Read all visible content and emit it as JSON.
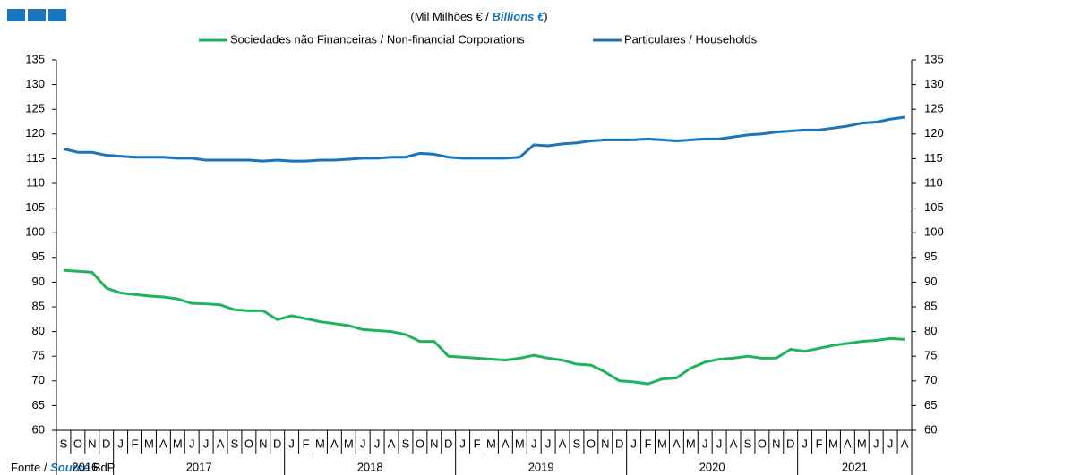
{
  "chart_data": {
    "type": "line",
    "subtitle": [
      "(Mil Milhões € / ",
      "Billions  €",
      ")"
    ],
    "categories": [
      "S",
      "O",
      "N",
      "D",
      "J",
      "F",
      "M",
      "A",
      "M",
      "J",
      "J",
      "A",
      "S",
      "O",
      "N",
      "D",
      "J",
      "F",
      "M",
      "A",
      "M",
      "J",
      "J",
      "A",
      "S",
      "O",
      "N",
      "D",
      "J",
      "F",
      "M",
      "A",
      "M",
      "J",
      "J",
      "A",
      "S",
      "O",
      "N",
      "D",
      "J",
      "F",
      "M",
      "A",
      "M",
      "J",
      "J",
      "A",
      "S",
      "O",
      "N",
      "D",
      "J",
      "F",
      "M",
      "A",
      "M",
      "J",
      "J",
      "A"
    ],
    "years": [
      "2016",
      "2017",
      "2018",
      "2019",
      "2020",
      "2021"
    ],
    "series": [
      {
        "name": "Sociedades não Financeiras / Non-financial Corporations",
        "color": "#1fb35a",
        "values": [
          92.4,
          92.2,
          92.0,
          88.8,
          87.8,
          87.5,
          87.2,
          87.0,
          86.6,
          85.7,
          85.6,
          85.4,
          84.4,
          84.2,
          84.2,
          82.4,
          83.2,
          82.6,
          82.0,
          81.6,
          81.2,
          80.4,
          80.2,
          80.0,
          79.4,
          78.0,
          78.0,
          75.0,
          74.8,
          74.6,
          74.4,
          74.2,
          74.6,
          75.2,
          74.6,
          74.2,
          73.4,
          73.2,
          71.8,
          70.0,
          69.8,
          69.4,
          70.4,
          70.6,
          72.6,
          73.8,
          74.4,
          74.6,
          75.0,
          74.6,
          74.6,
          76.4,
          76.0,
          76.6,
          77.2,
          77.6,
          78.0,
          78.2,
          78.6,
          78.4
        ]
      },
      {
        "name": "Particulares / Households",
        "color": "#1a75bc",
        "values": [
          117.0,
          116.3,
          116.3,
          115.7,
          115.5,
          115.3,
          115.3,
          115.3,
          115.1,
          115.1,
          114.7,
          114.7,
          114.7,
          114.7,
          114.5,
          114.7,
          114.5,
          114.5,
          114.7,
          114.7,
          114.9,
          115.1,
          115.1,
          115.3,
          115.3,
          116.1,
          115.9,
          115.3,
          115.1,
          115.1,
          115.1,
          115.1,
          115.3,
          117.8,
          117.6,
          118.0,
          118.2,
          118.6,
          118.8,
          118.8,
          118.8,
          119.0,
          118.8,
          118.6,
          118.8,
          119.0,
          119.0,
          119.4,
          119.8,
          120.0,
          120.4,
          120.6,
          120.8,
          120.8,
          121.2,
          121.6,
          122.2,
          122.4,
          123.0,
          123.4
        ]
      }
    ],
    "ylim": [
      60,
      135
    ],
    "yticks": [
      60,
      65,
      70,
      75,
      80,
      85,
      90,
      95,
      100,
      105,
      110,
      115,
      120,
      125,
      130,
      135
    ],
    "y2lim": [
      60,
      135
    ],
    "y2ticks": [
      60,
      65,
      70,
      75,
      80,
      85,
      90,
      95,
      100,
      105,
      110,
      115,
      120,
      125,
      130,
      135
    ],
    "source": [
      "Fonte / ",
      "Source",
      " BdP"
    ]
  }
}
